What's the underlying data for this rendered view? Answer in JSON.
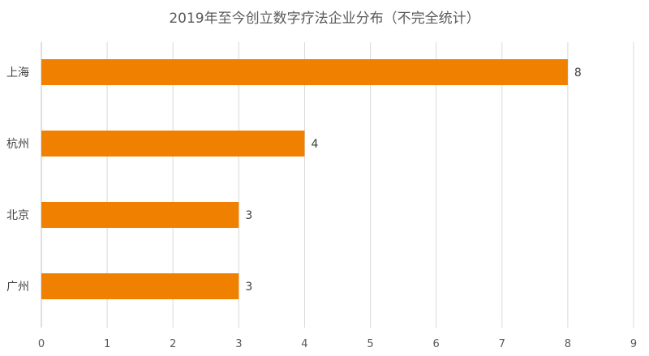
{
  "chart_data": {
    "type": "bar",
    "orientation": "horizontal",
    "title": "2019年至今创立数字疗法企业分布（不完全统计）",
    "categories": [
      "上海",
      "杭州",
      "北京",
      "广州"
    ],
    "values": [
      8,
      4,
      3,
      3
    ],
    "xlim": [
      0,
      9
    ],
    "x_ticks": [
      0,
      1,
      2,
      3,
      4,
      5,
      6,
      7,
      8,
      9
    ],
    "grid": "vertical",
    "bar_color": "#F08000",
    "data_labels": true
  }
}
